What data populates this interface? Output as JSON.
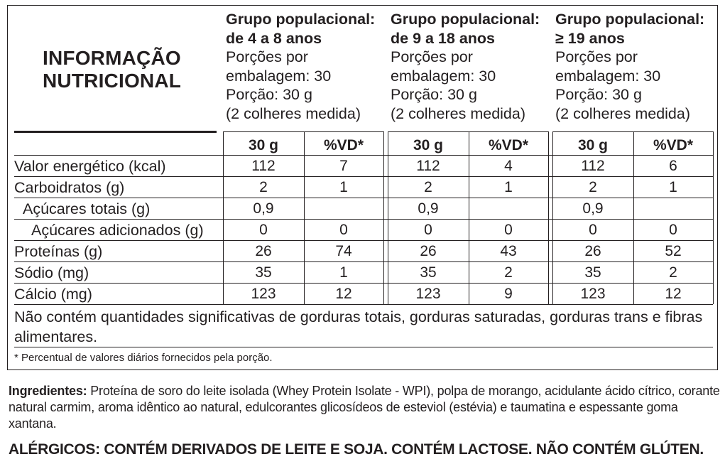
{
  "title_line1": "INFORMAÇÃO",
  "title_line2": "NUTRICIONAL",
  "groups": [
    {
      "name_l1": "Grupo populacional:",
      "name_l2": "de 4 a 8 anos",
      "portions_l1": "Porções por",
      "portions_l2": "embalagem: 30",
      "serving": "Porção: 30 g",
      "measure": "(2 colheres medida)"
    },
    {
      "name_l1": "Grupo populacional:",
      "name_l2": "de 9 a 18 anos",
      "portions_l1": "Porções por",
      "portions_l2": "embalagem: 30",
      "serving": "Porção: 30 g",
      "measure": "(2 colheres medida)"
    },
    {
      "name_l1": "Grupo populacional:",
      "name_l2": "≥ 19 anos",
      "portions_l1": "Porções por",
      "portions_l2": "embalagem: 30",
      "serving": "Porção: 30 g",
      "measure": "(2 colheres medida)"
    }
  ],
  "col_headers": [
    "30 g",
    "%VD*",
    "30 g",
    "%VD*",
    "30 g",
    "%VD*"
  ],
  "rows": [
    {
      "label": "Valor energético (kcal)",
      "values": [
        "112",
        "7",
        "112",
        "4",
        "112",
        "6"
      ]
    },
    {
      "label": "Carboidratos (g)",
      "values": [
        "2",
        "1",
        "2",
        "1",
        "2",
        "1"
      ]
    },
    {
      "label": "Açúcares totais (g)",
      "values": [
        "0,9",
        "",
        "0,9",
        "",
        "0,9",
        ""
      ]
    },
    {
      "label": "Açúcares adicionados (g)",
      "values": [
        "0",
        "0",
        "0",
        "0",
        "0",
        "0"
      ]
    },
    {
      "label": "Proteínas (g)",
      "values": [
        "26",
        "74",
        "26",
        "43",
        "26",
        "52"
      ]
    },
    {
      "label": "Sódio (mg)",
      "values": [
        "35",
        "1",
        "35",
        "2",
        "35",
        "2"
      ]
    },
    {
      "label": "Cálcio (mg)",
      "values": [
        "123",
        "12",
        "123",
        "9",
        "123",
        "12"
      ]
    }
  ],
  "note": "Não contém quantidades significativas de gorduras totais, gorduras saturadas, gorduras trans e fibras alimentares.",
  "footnote": "* Percentual de valores diários fornecidos pela porção.",
  "ingredients_label": "Ingredientes:",
  "ingredients_text": " Proteína de soro do leite isolada (Whey Protein Isolate - WPI), polpa de morango, acidulante ácido cítrico, corante natural carmim, aroma idêntico ao natural, edulcorantes glicosídeos de esteviol (estévia) e taumatina e espessante goma xantana.",
  "allergens": "ALÉRGICOS: CONTÉM DERIVADOS DE LEITE E SOJA. CONTÉM LACTOSE. NÃO CONTÉM GLÚTEN."
}
